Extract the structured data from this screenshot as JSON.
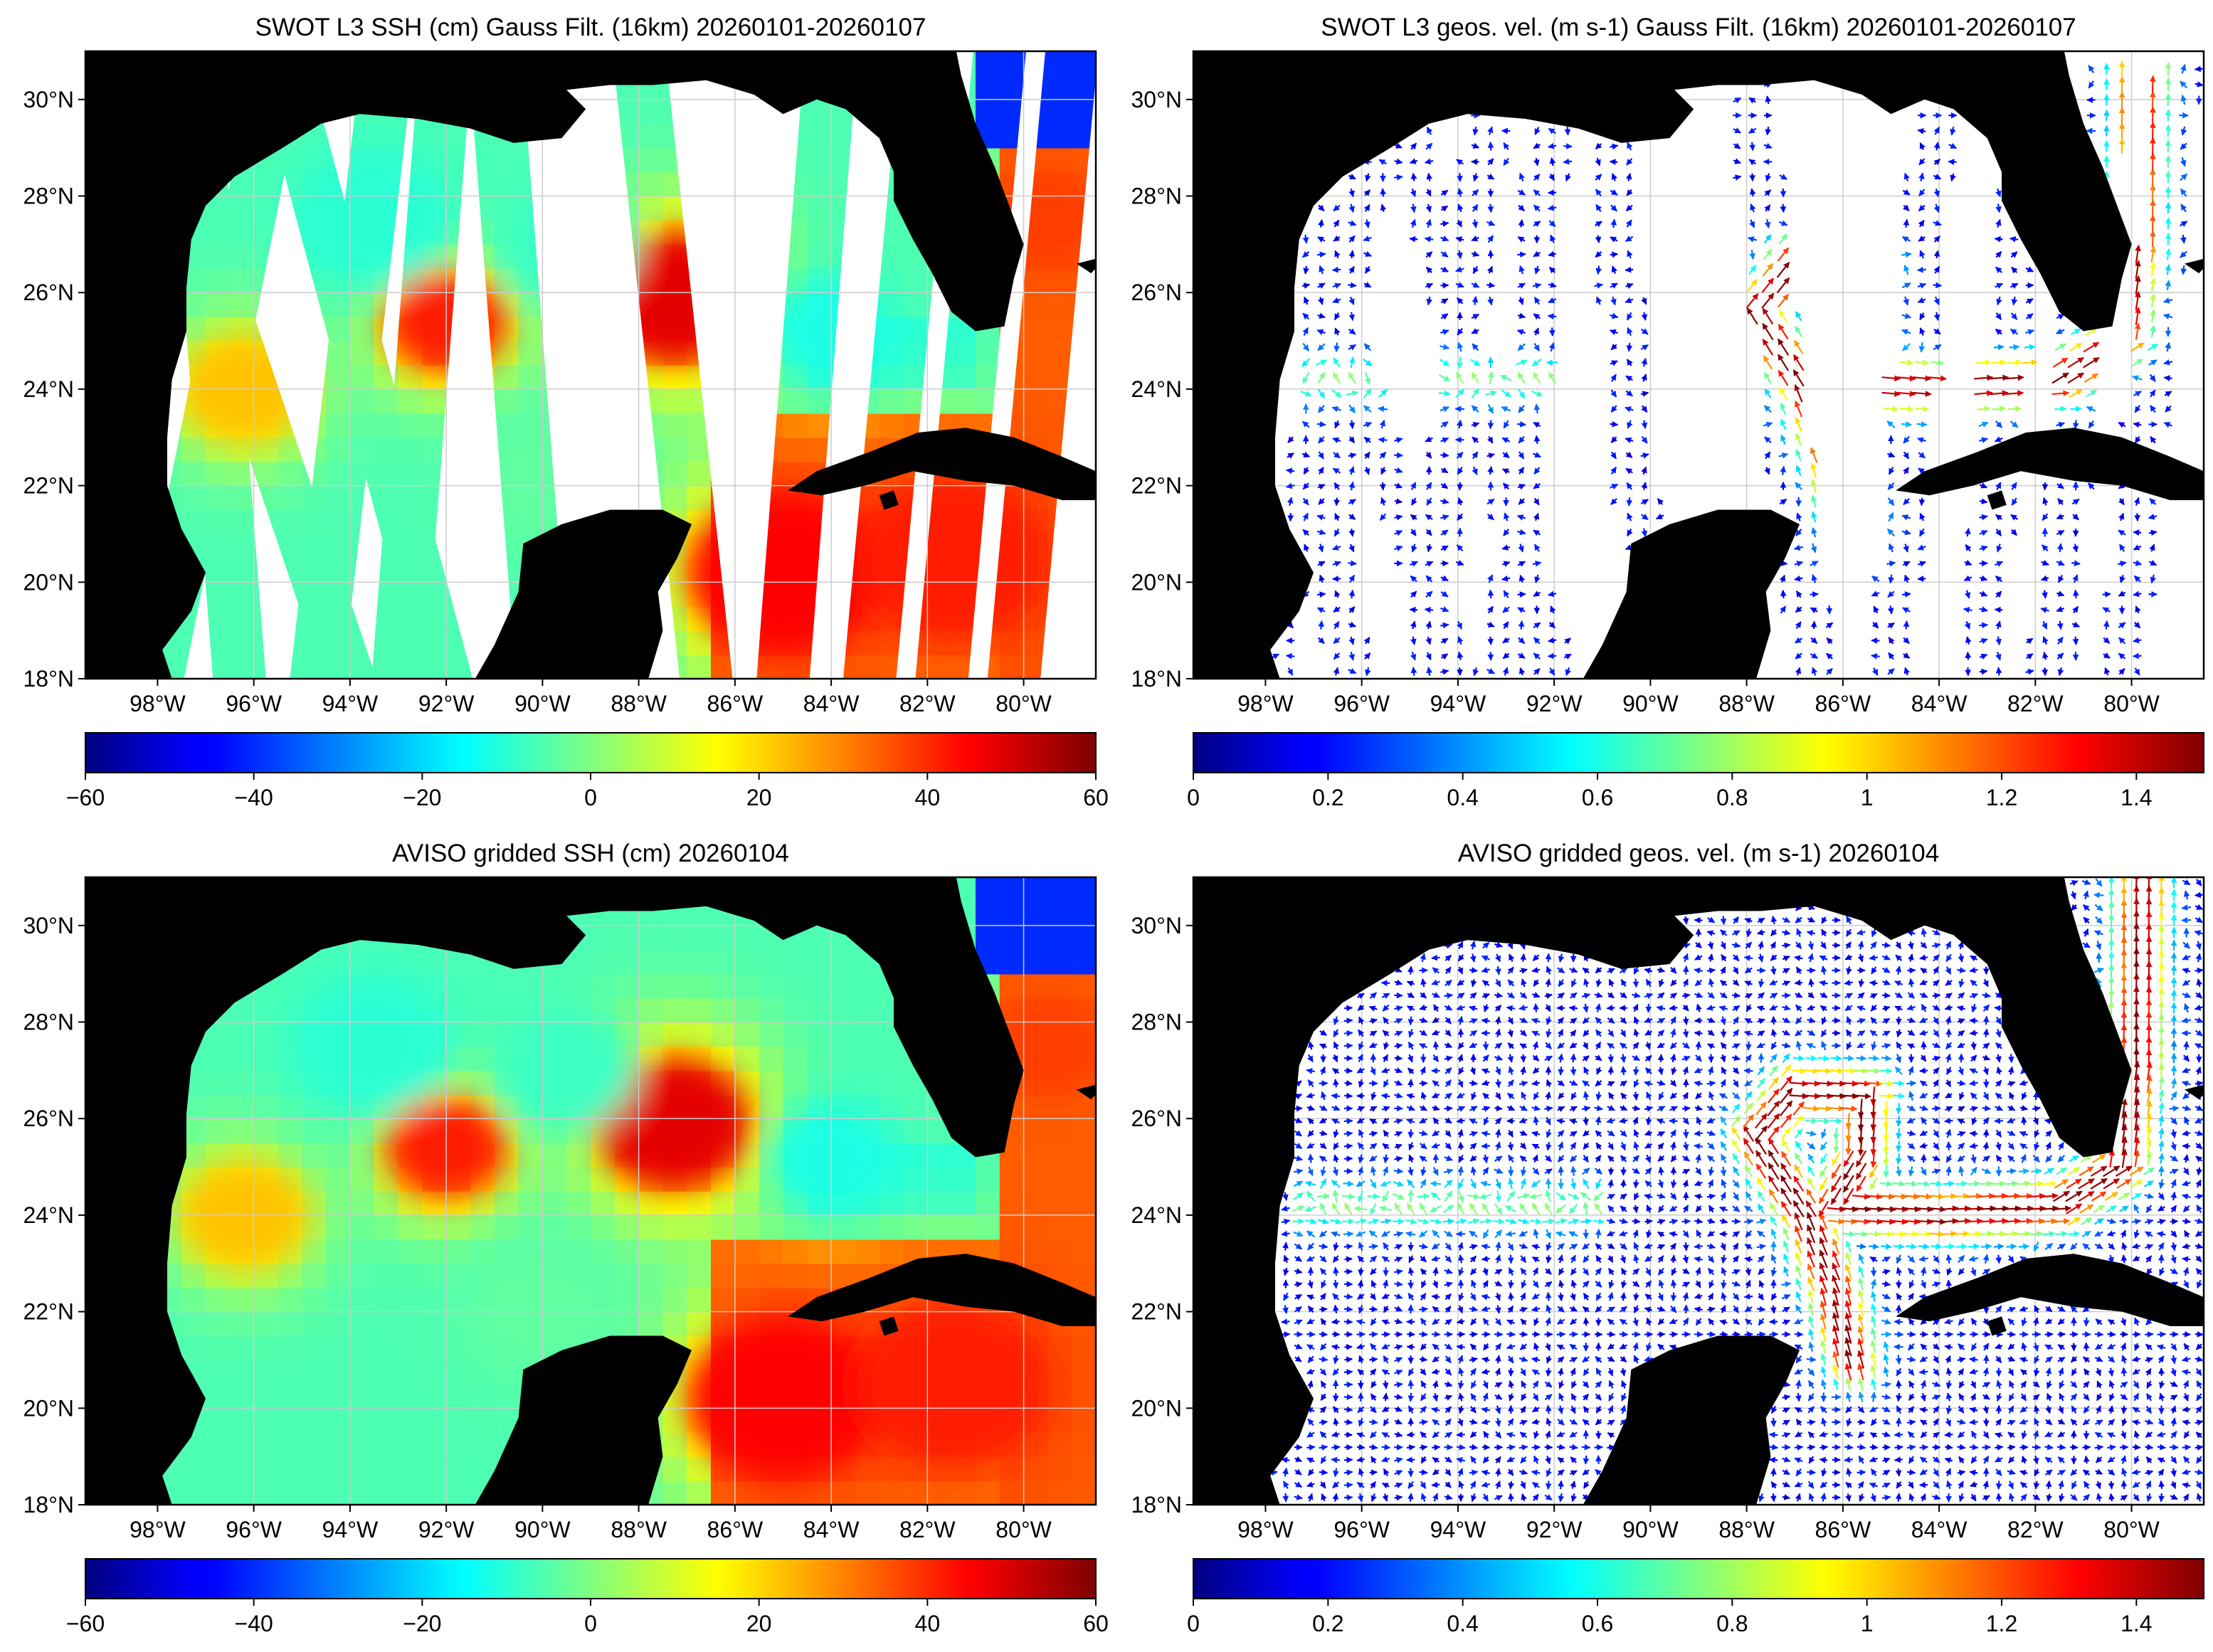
{
  "figure": {
    "panels": [
      {
        "id": "swot-ssh",
        "title": "SWOT L3 SSH (cm) Gauss Filt. (16km) 20260101-20260107",
        "kind": "ssh",
        "source": "swot",
        "colorbar": {
          "ticks": [
            "−60",
            "−40",
            "−20",
            "0",
            "20",
            "40",
            "60"
          ],
          "range": [
            -60,
            60
          ],
          "colormap": "jet"
        }
      },
      {
        "id": "swot-vel",
        "title": "SWOT L3 geos. vel. (m s-1) Gauss Filt. (16km) 20260101-20260107",
        "kind": "vel",
        "source": "swot",
        "colorbar": {
          "ticks": [
            "0",
            "0.2",
            "0.4",
            "0.6",
            "0.8",
            "1",
            "1.2",
            "1.4"
          ],
          "range": [
            0,
            1.5
          ],
          "colormap": "jet"
        }
      },
      {
        "id": "aviso-ssh",
        "title": "AVISO gridded SSH (cm) 20260104",
        "kind": "ssh",
        "source": "aviso",
        "colorbar": {
          "ticks": [
            "−60",
            "−40",
            "−20",
            "0",
            "20",
            "40",
            "60"
          ],
          "range": [
            -60,
            60
          ],
          "colormap": "jet"
        }
      },
      {
        "id": "aviso-vel",
        "title": "AVISO gridded geos. vel. (m s-1)  20260104",
        "kind": "vel",
        "source": "aviso",
        "colorbar": {
          "ticks": [
            "0",
            "0.2",
            "0.4",
            "0.6",
            "0.8",
            "1",
            "1.2",
            "1.4"
          ],
          "range": [
            0,
            1.5
          ],
          "colormap": "jet"
        }
      }
    ],
    "lat_labels": [
      "18°N",
      "20°N",
      "22°N",
      "24°N",
      "26°N",
      "28°N",
      "30°N"
    ],
    "lon_labels": [
      "98°W",
      "96°W",
      "94°W",
      "92°W",
      "90°W",
      "88°W",
      "86°W",
      "84°W",
      "82°W",
      "80°W"
    ],
    "map_extent": {
      "lon": [
        -99.5,
        -78.5
      ],
      "lat": [
        18,
        31
      ]
    },
    "colors": {
      "land": "#000000",
      "ocean_missing": "#ffffff",
      "grid": "#cccccc"
    }
  }
}
